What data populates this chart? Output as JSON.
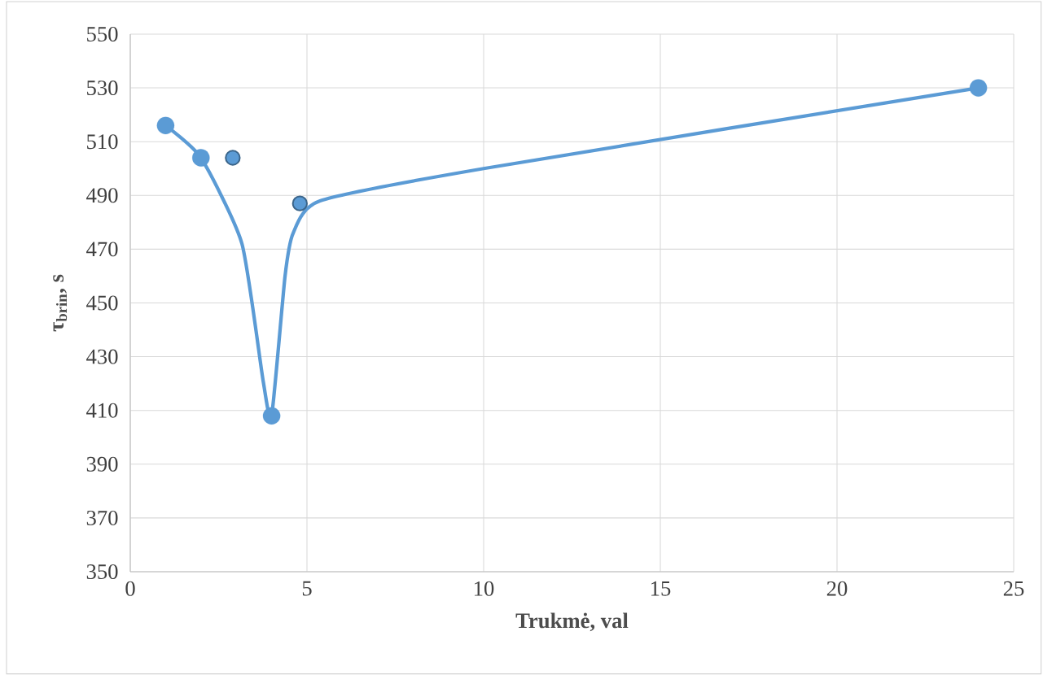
{
  "chart_data": {
    "type": "scatter",
    "xlabel": "Trukmė, val",
    "ylabel": "τ$_{brin}$, s",
    "xlim": [
      0,
      25
    ],
    "xticks": [
      0,
      5,
      10,
      15,
      20,
      25
    ],
    "ylim": [
      350,
      550
    ],
    "yticks": [
      350,
      370,
      390,
      410,
      430,
      450,
      470,
      490,
      510,
      530,
      550
    ],
    "grid": true,
    "series": [
      {
        "type": "line",
        "color": "#5b9bd5",
        "marker": "none",
        "x": [
          1,
          2,
          3.16,
          3.76,
          4,
          4.38,
          4.61,
          5.37,
          10,
          24
        ],
        "values": [
          516,
          504,
          472,
          421,
          408,
          460,
          476,
          488,
          500,
          530
        ]
      },
      {
        "color": "#5b9bd5",
        "marker": "circle",
        "x": [
          1,
          2,
          4,
          24
        ],
        "values": [
          516,
          504,
          408,
          530
        ]
      },
      {
        "color": "#5b9bd5",
        "marker": "circle",
        "x": [
          2.9,
          4.8
        ],
        "values": [
          504,
          487
        ]
      }
    ]
  }
}
